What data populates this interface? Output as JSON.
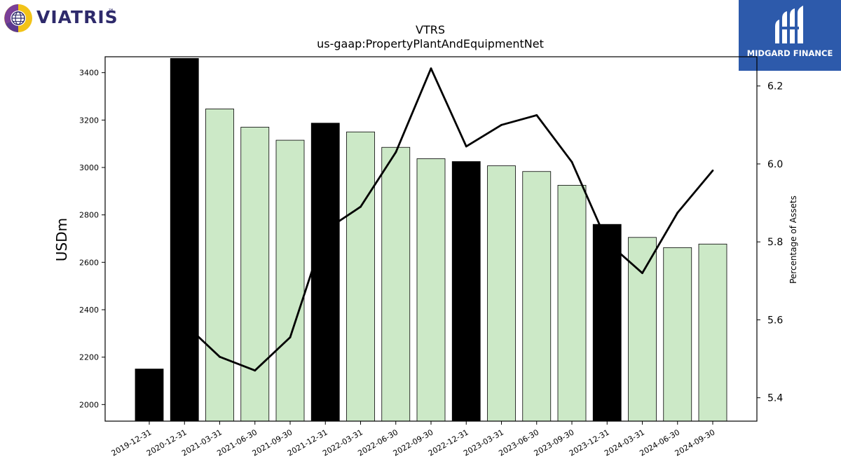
{
  "header": {
    "company_logo": "VIATRIS",
    "company_logo_mark": "™",
    "brand_logo": "MIDGARD FINANCE"
  },
  "colors": {
    "annual_bar": "#000000",
    "quarterly_bar": "#cce9c7",
    "line": "#000000",
    "brand_panel": "#2d5aab",
    "viatris_text": "#2e2a6b"
  },
  "chart_data": {
    "type": "bar",
    "title": "VTRS",
    "subtitle": "us-gaap:PropertyPlantAndEquipmentNet",
    "ylabel": "USDm",
    "y2label": "Percentage of Assets",
    "categories": [
      "2019-12-31",
      "2020-12-31",
      "2021-03-31",
      "2021-06-30",
      "2021-09-30",
      "2021-12-31",
      "2022-03-31",
      "2022-06-30",
      "2022-09-30",
      "2022-12-31",
      "2023-03-31",
      "2023-06-30",
      "2023-09-30",
      "2023-12-31",
      "2024-03-31",
      "2024-06-30",
      "2024-09-30"
    ],
    "series": [
      {
        "values": [
          2150,
          3460,
          3247,
          3170,
          3115,
          3187,
          3150,
          3085,
          3037,
          3025,
          3007,
          2983,
          2925,
          2760,
          2705,
          2662,
          2677
        ],
        "bar_kind": [
          "annual",
          "annual",
          "quarter",
          "quarter",
          "quarter",
          "annual",
          "quarter",
          "quarter",
          "quarter",
          "annual",
          "quarter",
          "quarter",
          "quarter",
          "annual",
          "quarter",
          "quarter",
          "quarter"
        ]
      },
      {
        "type": "line",
        "axis": "right",
        "values": [
          null,
          5.59,
          5.505,
          5.47,
          5.555,
          5.83,
          5.89,
          6.03,
          6.245,
          6.045,
          6.1,
          6.125,
          6.005,
          5.8,
          5.72,
          5.875,
          5.983
        ]
      }
    ],
    "yticks": [
      2000,
      2200,
      2400,
      2600,
      2800,
      3000,
      3200,
      3400
    ],
    "y2ticks": [
      5.4,
      5.6,
      5.8,
      6.0,
      6.2
    ],
    "ylim": [
      1930,
      3467
    ],
    "y2lim": [
      5.34,
      6.275
    ],
    "grid": false,
    "legend": "none"
  }
}
